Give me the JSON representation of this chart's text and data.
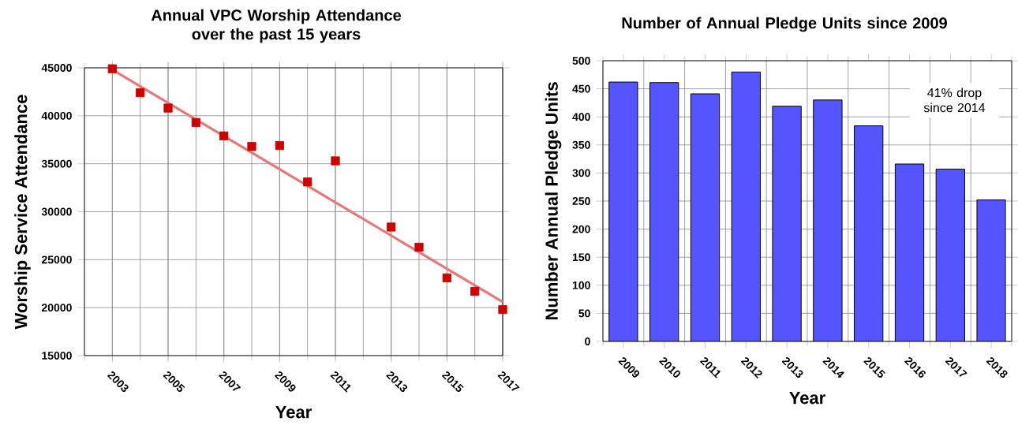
{
  "chart_data": [
    {
      "type": "scatter",
      "title": "Annual VPC Worship Attendance over the past 15 years",
      "xlabel": "Year",
      "ylabel": "Worship Service Attendance",
      "series": [
        {
          "type": "scatter",
          "marker": "square",
          "color": "#cc0000",
          "x": [
            2003,
            2004,
            2005,
            2006,
            2007,
            2008,
            2009,
            2010,
            2011,
            2013,
            2014,
            2015,
            2016,
            2017
          ],
          "values": [
            44900,
            42400,
            40800,
            39300,
            37900,
            36800,
            36900,
            33100,
            35300,
            28400,
            26300,
            23100,
            21700,
            19800
          ]
        },
        {
          "type": "line",
          "color": "#e87878",
          "x": [
            2003,
            2017
          ],
          "values": [
            44800,
            20600
          ]
        }
      ],
      "xlim": [
        2002,
        2017
      ],
      "ylim": [
        15000,
        45000
      ],
      "xticks": [
        2003,
        2005,
        2007,
        2009,
        2011,
        2013,
        2015,
        2017
      ],
      "yticks": [
        15000,
        20000,
        25000,
        30000,
        35000,
        40000,
        45000
      ],
      "grid": true
    },
    {
      "type": "bar",
      "title": "Number of Annual Pledge Units since 2009",
      "xlabel": "Year",
      "ylabel": "Number Annual Pledge Units",
      "categories": [
        "2009",
        "2010",
        "2011",
        "2012",
        "2013",
        "2014",
        "2015",
        "2016",
        "2017",
        "2018"
      ],
      "values": [
        462,
        461,
        441,
        480,
        419,
        430,
        384,
        316,
        307,
        252
      ],
      "color": "#5555ff",
      "ylim": [
        0,
        500
      ],
      "yticks": [
        0,
        50,
        100,
        150,
        200,
        250,
        300,
        350,
        400,
        450,
        500
      ],
      "grid": true,
      "annotations": [
        "41% drop since 2014"
      ]
    }
  ]
}
